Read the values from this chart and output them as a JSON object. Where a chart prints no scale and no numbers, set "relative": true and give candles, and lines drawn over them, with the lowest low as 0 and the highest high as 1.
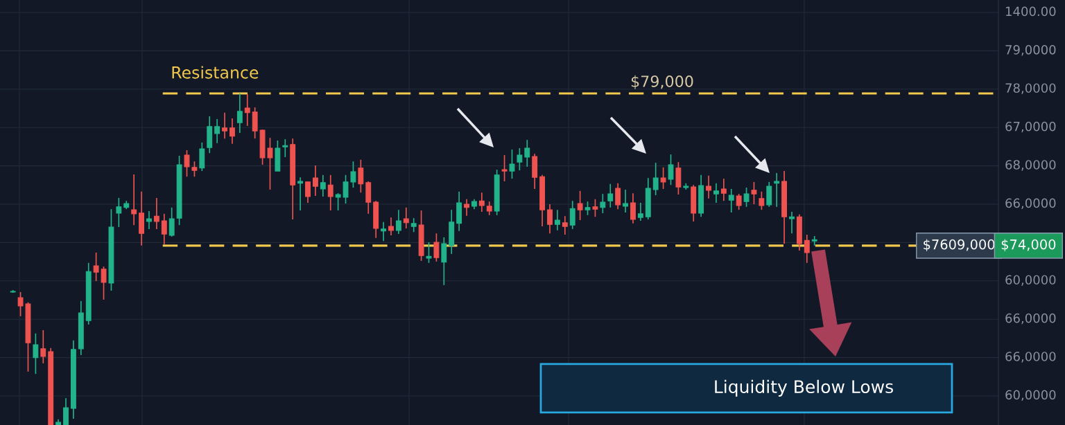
{
  "chart_data": {
    "type": "candlestick",
    "relative": true,
    "grid": true,
    "categories": [
      null,
      null,
      null,
      null,
      null,
      null,
      null,
      null,
      null,
      null,
      null,
      null,
      null,
      null,
      null,
      null,
      null,
      null,
      null,
      null,
      null,
      null,
      null,
      null,
      null,
      null,
      null,
      null,
      null,
      null,
      null,
      null,
      null,
      null,
      null,
      null,
      null,
      null,
      null,
      null,
      null,
      null,
      null,
      null,
      null,
      null,
      null,
      null,
      null,
      null,
      null,
      null,
      null,
      null,
      null,
      null,
      null,
      null,
      null,
      null,
      null,
      null,
      null,
      null,
      null,
      null,
      null,
      null,
      null,
      null,
      null,
      null,
      null,
      null,
      null,
      null,
      null,
      null,
      null,
      null,
      null,
      null,
      null,
      null,
      null,
      null,
      null,
      null,
      null,
      null,
      null,
      null,
      null,
      null,
      null,
      null,
      null,
      null,
      null,
      null,
      null,
      null,
      null,
      null,
      null,
      null,
      null
    ],
    "ohlc": [
      [
        0.401,
        0.407,
        0.399,
        0.403
      ],
      [
        0.384,
        0.401,
        0.328,
        0.359
      ],
      [
        0.365,
        0.37,
        0.161,
        0.248
      ],
      [
        0.203,
        0.276,
        0.154,
        0.242
      ],
      [
        0.23,
        0.286,
        0.186,
        0.207
      ],
      [
        0.221,
        0.232,
        0,
        0
      ],
      [
        0,
        0.017,
        0,
        0.008
      ],
      [
        0,
        0.081,
        0,
        0.052
      ],
      [
        0.05,
        0.255,
        0.019,
        0.228
      ],
      [
        0.23,
        0.374,
        0.211,
        0.338
      ],
      [
        0.315,
        0.489,
        0.303,
        0.463
      ],
      [
        0.48,
        0.52,
        0.434,
        0.461
      ],
      [
        0.47,
        0.478,
        0.378,
        0.43
      ],
      [
        0.428,
        0.651,
        0.405,
        0.597
      ],
      [
        0.639,
        0.685,
        0.597,
        0.658
      ],
      [
        0.656,
        0.676,
        0.651,
        0.668
      ],
      [
        0.649,
        0.756,
        0.603,
        0.637
      ],
      [
        0.639,
        0.704,
        0.541,
        0.578
      ],
      [
        0.614,
        0.645,
        0.591,
        0.622
      ],
      [
        0.63,
        0.685,
        0.591,
        0.614
      ],
      [
        0.616,
        0.637,
        0.545,
        0.576
      ],
      [
        0.572,
        0.656,
        0.568,
        0.622
      ],
      [
        0.624,
        0.812,
        0.603,
        0.785
      ],
      [
        0.814,
        0.829,
        0.749,
        0.779
      ],
      [
        0.777,
        0.795,
        0.749,
        0.768
      ],
      [
        0.775,
        0.852,
        0.766,
        0.833
      ],
      [
        0.837,
        0.931,
        0.82,
        0.9
      ],
      [
        0.879,
        0.923,
        0.85,
        0.9
      ],
      [
        0.896,
        0.942,
        0.864,
        0.887
      ],
      [
        0.896,
        0.925,
        0.848,
        0.871
      ],
      [
        0.912,
        1,
        0.881,
        0.946
      ],
      [
        0.956,
        0.998,
        0.902,
        0.942
      ],
      [
        0.944,
        0.958,
        0.864,
        0.887
      ],
      [
        0.889,
        0.891,
        0.785,
        0.806
      ],
      [
        0.835,
        0.866,
        0.71,
        0.806
      ],
      [
        0.766,
        0.858,
        0.766,
        0.835
      ],
      [
        0.839,
        0.862,
        0.808,
        0.843
      ],
      [
        0.846,
        0.864,
        0.62,
        0.724
      ],
      [
        0.729,
        0.747,
        0.647,
        0.735
      ],
      [
        0.733,
        0.735,
        0.67,
        0.689
      ],
      [
        0.745,
        0.783,
        0.691,
        0.72
      ],
      [
        0.712,
        0.754,
        0.689,
        0.731
      ],
      [
        0.724,
        0.754,
        0.647,
        0.689
      ],
      [
        0.687,
        0.699,
        0.647,
        0.695
      ],
      [
        0.687,
        0.754,
        0.668,
        0.733
      ],
      [
        0.733,
        0.795,
        0.716,
        0.764
      ],
      [
        0.775,
        0.8,
        0.701,
        0.727
      ],
      [
        0.731,
        0.735,
        0.637,
        0.672
      ],
      [
        0.672,
        0.676,
        0.564,
        0.593
      ],
      [
        0.585,
        0.612,
        0.555,
        0.591
      ],
      [
        0.599,
        0.626,
        0.572,
        0.587
      ],
      [
        0.587,
        0.649,
        0.576,
        0.616
      ],
      [
        0.622,
        0.656,
        0.593,
        0.61
      ],
      [
        0.599,
        0.624,
        0.582,
        0.608
      ],
      [
        0.603,
        0.647,
        0.495,
        0.511
      ],
      [
        0.503,
        0.551,
        0.489,
        0.509
      ],
      [
        0.551,
        0.578,
        0.493,
        0.505
      ],
      [
        0.491,
        0.566,
        0.422,
        0.547
      ],
      [
        0.541,
        0.649,
        0.516,
        0.612
      ],
      [
        0.608,
        0.704,
        0.585,
        0.67
      ],
      [
        0.666,
        0.681,
        0.631,
        0.656
      ],
      [
        0.66,
        0.681,
        0.651,
        0.674
      ],
      [
        0.676,
        0.701,
        0.643,
        0.662
      ],
      [
        0.66,
        0.674,
        0.633,
        0.645
      ],
      [
        0.645,
        0.77,
        0.633,
        0.754
      ],
      [
        0.77,
        0.814,
        0.735,
        0.766
      ],
      [
        0.766,
        0.831,
        0.743,
        0.787
      ],
      [
        0.793,
        0.835,
        0.768,
        0.814
      ],
      [
        0.808,
        0.86,
        0.779,
        0.835
      ],
      [
        0.81,
        0.818,
        0.712,
        0.747
      ],
      [
        0.749,
        0.754,
        0.599,
        0.649
      ],
      [
        0.649,
        0.666,
        0.578,
        0.605
      ],
      [
        0.605,
        0.649,
        0.587,
        0.618
      ],
      [
        0.61,
        0.63,
        0.574,
        0.599
      ],
      [
        0.603,
        0.676,
        0.591,
        0.653
      ],
      [
        0.668,
        0.706,
        0.618,
        0.649
      ],
      [
        0.649,
        0.674,
        0.633,
        0.656
      ],
      [
        0.658,
        0.681,
        0.628,
        0.651
      ],
      [
        0.656,
        0.697,
        0.639,
        0.672
      ],
      [
        0.676,
        0.727,
        0.656,
        0.697
      ],
      [
        0.714,
        0.729,
        0.651,
        0.664
      ],
      [
        0.66,
        0.71,
        0.641,
        0.668
      ],
      [
        0.67,
        0.699,
        0.608,
        0.62
      ],
      [
        0.626,
        0.67,
        0.616,
        0.637
      ],
      [
        0.628,
        0.745,
        0.62,
        0.714
      ],
      [
        0.71,
        0.791,
        0.693,
        0.745
      ],
      [
        0.745,
        0.777,
        0.712,
        0.733
      ],
      [
        0.741,
        0.816,
        0.724,
        0.785
      ],
      [
        0.775,
        0.793,
        0.695,
        0.718
      ],
      [
        0.716,
        0.729,
        0.71,
        0.72
      ],
      [
        0.718,
        0.724,
        0.614,
        0.639
      ],
      [
        0.639,
        0.754,
        0.628,
        0.722
      ],
      [
        0.72,
        0.752,
        0.683,
        0.708
      ],
      [
        0.697,
        0.729,
        0.67,
        0.706
      ],
      [
        0.712,
        0.743,
        0.676,
        0.699
      ],
      [
        0.678,
        0.712,
        0.641,
        0.693
      ],
      [
        0.691,
        0.697,
        0.649,
        0.662
      ],
      [
        0.674,
        0.716,
        0.658,
        0.697
      ],
      [
        0.708,
        0.733,
        0.666,
        0.697
      ],
      [
        0.683,
        0.704,
        0.649,
        0.662
      ],
      [
        0.664,
        0.733,
        0.658,
        0.72
      ],
      [
        0.729,
        0.76,
        0.658,
        0.735
      ],
      [
        0.735,
        0.766,
        0.547,
        0.628
      ],
      [
        0.622,
        0.643,
        0.578,
        0.628
      ],
      [
        0.628,
        0.635,
        0.526,
        0.547
      ],
      [
        0.557,
        0.574,
        0.489,
        0.52
      ],
      [
        0.555,
        0.57,
        0.541,
        0.559
      ]
    ],
    "ref_lines": [
      {
        "axis": "y",
        "value": 1.0,
        "label": "Resistance",
        "color": "#f2c94c",
        "line_style": "dashed"
      },
      {
        "axis": "y",
        "value": 0.541,
        "color": "#f2c94c",
        "line_style": "dashed"
      }
    ],
    "bands": [
      {
        "axis": "y",
        "from": 0.038,
        "to": 0.184,
        "label": "Liquidity Below Lows",
        "color": "#29a8e0"
      }
    ],
    "annotations": [
      "1400.00",
      "79,0000",
      "78,0000",
      "67,0000",
      "68,0000",
      "66,0000",
      "60,0000",
      "66,0000",
      "66,0000",
      "60,0000",
      {
        "text": "$79,000",
        "y": 1.0
      },
      {
        "text": "$7609,000",
        "y": 0.541
      },
      "$74,000"
    ]
  }
}
